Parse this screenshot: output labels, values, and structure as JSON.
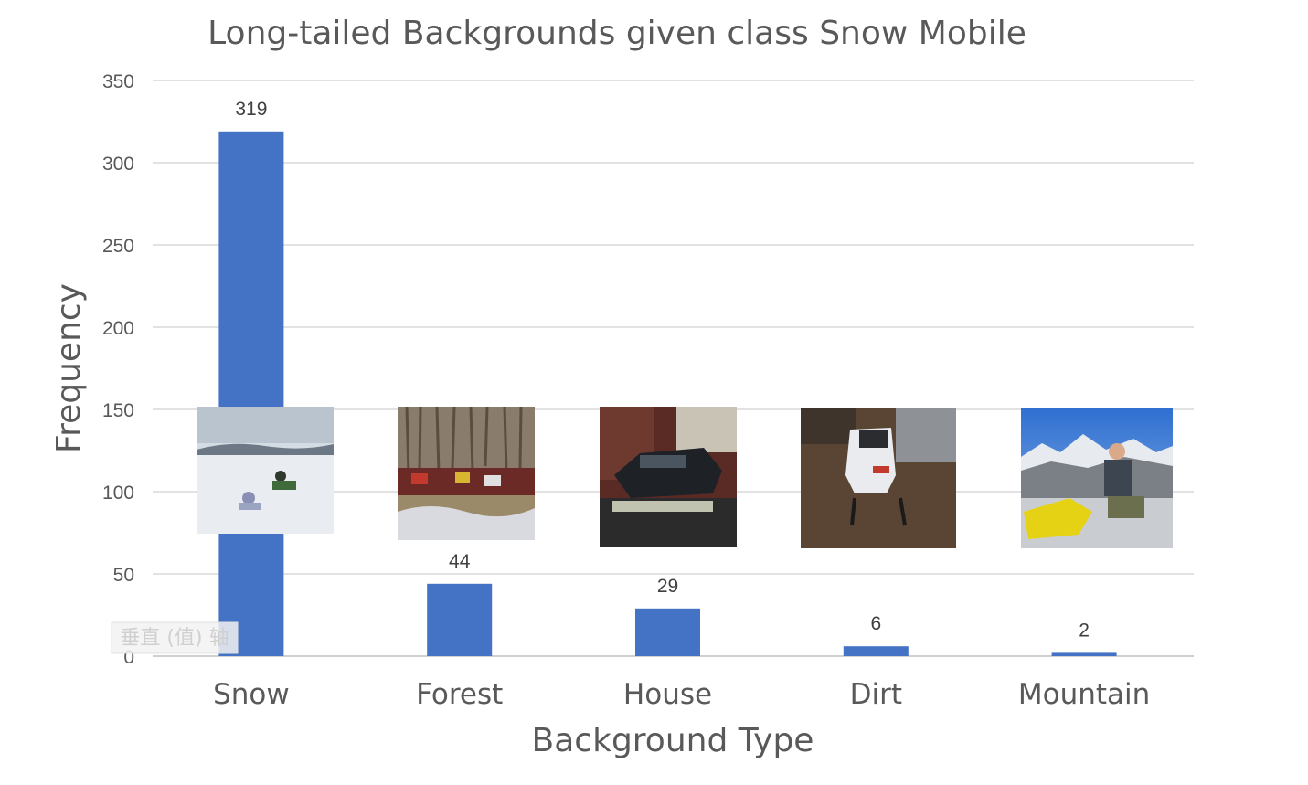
{
  "chart_data": {
    "type": "bar",
    "title": "Long-tailed Backgrounds given class Snow Mobile",
    "xlabel": "Background Type",
    "ylabel": "Frequency",
    "categories": [
      "Snow",
      "Forest",
      "House",
      "Dirt",
      "Mountain"
    ],
    "values": [
      319,
      44,
      29,
      6,
      2
    ],
    "data_labels": [
      "319",
      "44",
      "29",
      "6",
      "2"
    ],
    "ylim": [
      0,
      350
    ],
    "yticks": [
      0,
      50,
      100,
      150,
      200,
      250,
      300,
      350
    ],
    "ytick_labels": [
      "0",
      "50",
      "100",
      "150",
      "200",
      "250",
      "300",
      "350"
    ],
    "grid": true,
    "legend": "none",
    "bar_color": "#4472C4"
  },
  "overlay_tooltip": "垂直 (值) 轴",
  "thumbnails": [
    {
      "category": "Snow",
      "icon": "snow-field-photo"
    },
    {
      "category": "Forest",
      "icon": "forest-photo"
    },
    {
      "category": "House",
      "icon": "house-photo"
    },
    {
      "category": "Dirt",
      "icon": "dirt-photo"
    },
    {
      "category": "Mountain",
      "icon": "mountain-photo"
    }
  ]
}
